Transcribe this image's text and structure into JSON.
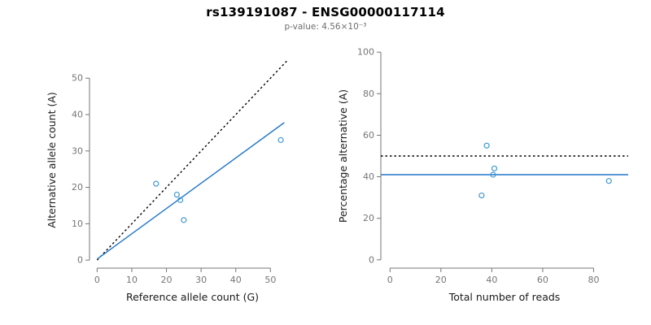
{
  "header": {
    "title": "rs139191087 - ENSG00000117114",
    "subtitle": "p-value: 4.56×10⁻³"
  },
  "colors": {
    "points": "#4398d1",
    "fit_line": "#2176cc",
    "reference_line": "#000000",
    "axis": "#757575",
    "tick_text": "#757575",
    "label_text": "#1a1a1a"
  },
  "chart_data": [
    {
      "type": "scatter",
      "name": "allele-counts",
      "xlabel": "Reference allele count (G)",
      "ylabel": "Alternative allele count (A)",
      "xlim": [
        0,
        55
      ],
      "ylim": [
        0,
        55
      ],
      "xticks": [
        0,
        10,
        20,
        30,
        40,
        50
      ],
      "yticks": [
        0,
        10,
        20,
        30,
        40,
        50
      ],
      "points": [
        [
          17,
          21
        ],
        [
          23,
          18
        ],
        [
          24,
          16.5
        ],
        [
          25,
          11
        ],
        [
          53,
          33
        ]
      ],
      "lines": [
        {
          "name": "identity-line",
          "style": "dotted",
          "color": "#000000",
          "x1": 0,
          "y1": 0,
          "x2": 55,
          "y2": 55
        },
        {
          "name": "fit-line",
          "style": "solid",
          "color": "#2176cc",
          "x1": 0,
          "y1": 0.3,
          "x2": 54,
          "y2": 37.8
        }
      ]
    },
    {
      "type": "scatter",
      "name": "percentage-vs-reads",
      "xlabel": "Total number of reads",
      "ylabel": "Percentage alternative (A)",
      "xlim": [
        0,
        90
      ],
      "ylim": [
        0,
        100
      ],
      "xticks": [
        0,
        20,
        40,
        60,
        80
      ],
      "yticks": [
        0,
        20,
        40,
        60,
        80,
        100
      ],
      "points": [
        [
          38,
          55
        ],
        [
          41,
          44
        ],
        [
          40.5,
          41
        ],
        [
          36,
          31
        ],
        [
          86,
          38
        ]
      ],
      "lines": [
        {
          "name": "reference-50pct-line",
          "style": "dotted",
          "color": "#000000",
          "y": 50
        },
        {
          "name": "mean-percentage-line",
          "style": "solid",
          "color": "#2176cc",
          "y": 41
        }
      ]
    }
  ]
}
